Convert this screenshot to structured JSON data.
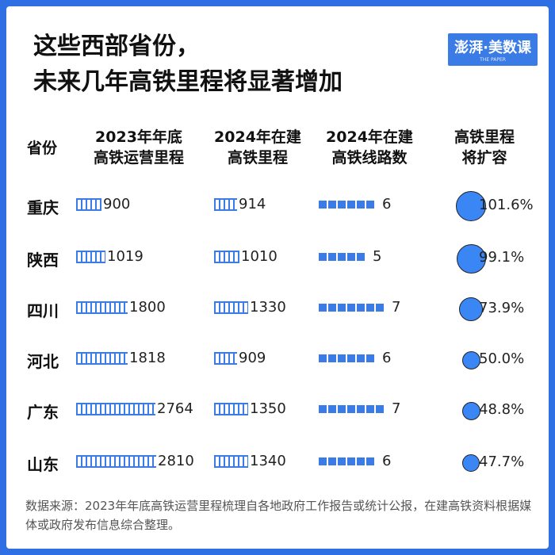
{
  "title": {
    "line1": "这些西部省份，",
    "line2": "未来几年高铁里程将显著增加"
  },
  "brand": {
    "name": "澎湃·美数课",
    "sub": "THE PAPER"
  },
  "headers": {
    "province": "省份",
    "col1": [
      "2023年年底",
      "高铁运营里程"
    ],
    "col2": [
      "2024年在建",
      "高铁里程"
    ],
    "col3": [
      "2024年在建",
      "高铁线路数"
    ],
    "col4": [
      "高铁里程",
      "将扩容"
    ]
  },
  "chart_data": {
    "type": "table",
    "columns": [
      "省份",
      "2023年年底高铁运营里程",
      "2024年在建高铁里程",
      "2024年在建高铁线路数",
      "高铁里程将扩容"
    ],
    "rows": [
      {
        "province": "重庆",
        "mileage_2023": 900,
        "construction_2024": 914,
        "lines_2024": 6,
        "expansion": "101.6%",
        "expansion_value": 101.6
      },
      {
        "province": "陕西",
        "mileage_2023": 1019,
        "construction_2024": 1010,
        "lines_2024": 5,
        "expansion": "99.1%",
        "expansion_value": 99.1
      },
      {
        "province": "四川",
        "mileage_2023": 1800,
        "construction_2024": 1330,
        "lines_2024": 7,
        "expansion": "73.9%",
        "expansion_value": 73.9
      },
      {
        "province": "河北",
        "mileage_2023": 1818,
        "construction_2024": 909,
        "lines_2024": 6,
        "expansion": "50.0%",
        "expansion_value": 50.0
      },
      {
        "province": "广东",
        "mileage_2023": 2764,
        "construction_2024": 1350,
        "lines_2024": 7,
        "expansion": "48.8%",
        "expansion_value": 48.8
      },
      {
        "province": "山东",
        "mileage_2023": 2810,
        "construction_2024": 1340,
        "lines_2024": 6,
        "expansion": "47.7%",
        "expansion_value": 47.7
      }
    ]
  },
  "colors": {
    "accent": "#3b7be6",
    "circle": "#3b86f5",
    "background": "#2f6fe4"
  },
  "source": "数据来源：2023年年底高铁运营里程梳理自各地政府工作报告或统计公报，在建高铁资料根据媒体或政府发布信息综合整理。"
}
